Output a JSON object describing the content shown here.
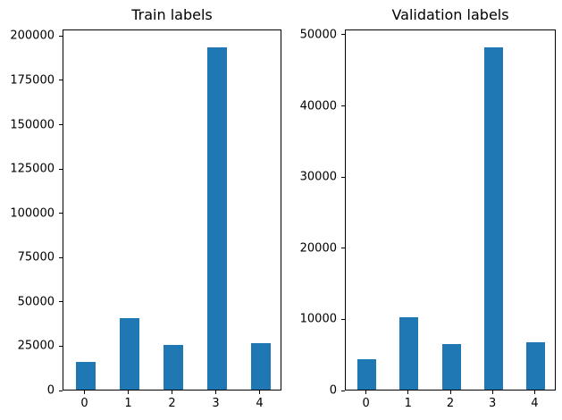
{
  "figure": {
    "background": "#ffffff",
    "text_color": "#000000"
  },
  "chart_data": [
    {
      "type": "bar",
      "title": "Train labels",
      "categories": [
        "0",
        "1",
        "2",
        "3",
        "4"
      ],
      "values": [
        15500,
        40500,
        25500,
        194000,
        26500
      ],
      "bar_color": "#1f77b4",
      "xlabel": "",
      "ylabel": "",
      "ylim": [
        0,
        203700
      ],
      "yticks": [
        0,
        25000,
        50000,
        75000,
        100000,
        125000,
        150000,
        175000,
        200000
      ],
      "grid": false,
      "legend": "none"
    },
    {
      "type": "bar",
      "title": "Validation labels",
      "categories": [
        "0",
        "1",
        "2",
        "3",
        "4"
      ],
      "values": [
        4300,
        10200,
        6500,
        48300,
        6700
      ],
      "bar_color": "#1f77b4",
      "xlabel": "",
      "ylabel": "",
      "ylim": [
        0,
        50750
      ],
      "yticks": [
        0,
        10000,
        20000,
        30000,
        40000,
        50000
      ],
      "grid": false,
      "legend": "none"
    }
  ]
}
